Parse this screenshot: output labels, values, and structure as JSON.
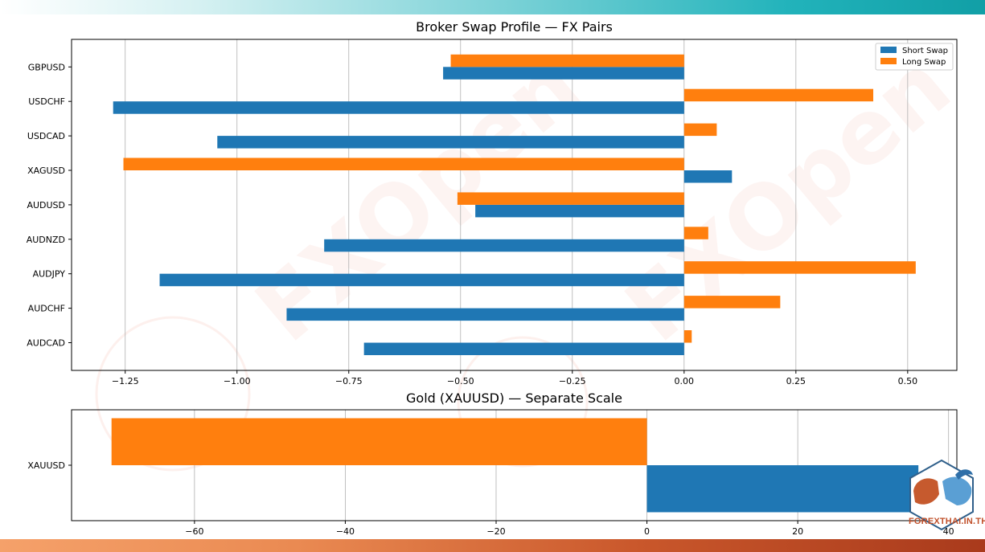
{
  "colors": {
    "short": "#1f77b4",
    "long": "#ff7f0e"
  },
  "watermark": {
    "text": "FXOpen",
    "color": "#e8674a"
  },
  "brand": {
    "text": "FOREXTHAI.IN.TH"
  },
  "chart_data": [
    {
      "type": "bar",
      "orientation": "horizontal",
      "title": "Broker Swap Profile — FX Pairs",
      "categories": [
        "AUDCAD",
        "AUDCHF",
        "AUDJPY",
        "AUDNZD",
        "AUDUSD",
        "XAGUSD",
        "USDCAD",
        "USDCHF",
        "GBPUSD"
      ],
      "series": [
        {
          "name": "Short Swap",
          "values": [
            -0.716,
            -0.889,
            -1.173,
            -0.805,
            -0.467,
            0.107,
            -1.044,
            -1.277,
            -0.539
          ]
        },
        {
          "name": "Long Swap",
          "values": [
            0.017,
            0.215,
            0.518,
            0.054,
            -0.507,
            -1.254,
            0.073,
            0.423,
            -0.522
          ]
        }
      ],
      "xlim": [
        -1.37,
        0.61
      ],
      "xticks": [
        "−1.25",
        "−1.00",
        "−0.75",
        "−0.50",
        "−0.25",
        "0.00",
        "0.25",
        "0.50"
      ],
      "xtick_values": [
        -1.25,
        -1.0,
        -0.75,
        -0.5,
        -0.25,
        0.0,
        0.25,
        0.5
      ],
      "grid": "x",
      "legend": "top-right"
    },
    {
      "type": "bar",
      "orientation": "horizontal",
      "title": "Gold (XAUUSD) — Separate Scale",
      "categories": [
        "XAUUSD"
      ],
      "series": [
        {
          "name": "Short Swap",
          "values": [
            36.0
          ]
        },
        {
          "name": "Long Swap",
          "values": [
            -71.0
          ]
        }
      ],
      "xlim": [
        -76.3,
        41.1
      ],
      "xticks": [
        "−60",
        "−40",
        "−20",
        "0",
        "20",
        "40"
      ],
      "xtick_values": [
        -60,
        -40,
        -20,
        0,
        20,
        40
      ],
      "grid": "x"
    }
  ]
}
